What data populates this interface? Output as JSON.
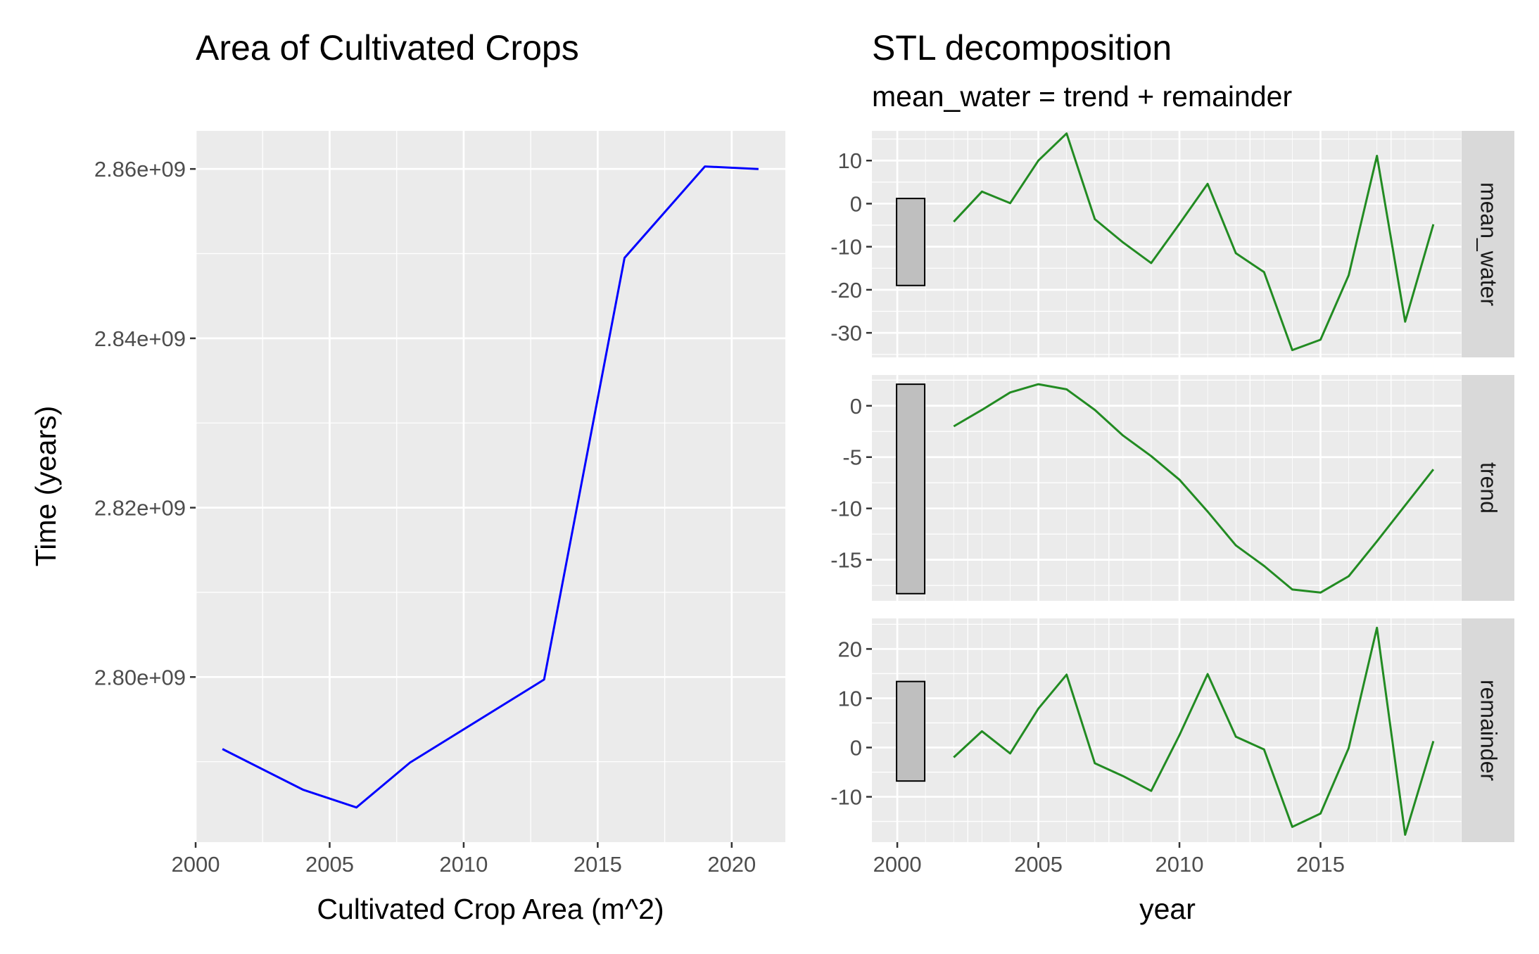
{
  "chart_data": [
    {
      "type": "line",
      "title": "Area of Cultivated Crops",
      "xlabel": "Cultivated Crop Area (m^2)",
      "ylabel": "Time (years)",
      "xlim": [
        2000,
        2022
      ],
      "ylim": [
        2780500000,
        2864500000
      ],
      "x_ticks": [
        2000,
        2005,
        2010,
        2015,
        2020
      ],
      "x_tick_labels": [
        "2000",
        "2005",
        "2010",
        "2015",
        "2020"
      ],
      "y_ticks": [
        2800000000,
        2820000000,
        2840000000,
        2860000000
      ],
      "y_tick_labels": [
        "2.80e+09",
        "2.82e+09",
        "2.84e+09",
        "2.86e+09"
      ],
      "grid": true,
      "line_color": "#0000ff",
      "series": [
        {
          "x": [
            2001,
            2004,
            2006,
            2008,
            2013,
            2016,
            2019,
            2021
          ],
          "values": [
            2791500000,
            2786700000,
            2784600000,
            2789900000,
            2799700000,
            2849500000,
            2860300000,
            2860000000
          ]
        }
      ]
    },
    {
      "type": "line",
      "title": "STL decomposition",
      "subtitle": "mean_water = trend + remainder",
      "xlabel": "year",
      "ylabel": "",
      "xlim": [
        1999.1,
        2020.0
      ],
      "x_ticks": [
        2000,
        2005,
        2010,
        2015
      ],
      "x_tick_labels": [
        "2000",
        "2005",
        "2010",
        "2015"
      ],
      "grid": true,
      "line_color": "#228b22",
      "x": [
        2002,
        2003,
        2004,
        2005,
        2006,
        2007,
        2008,
        2009,
        2010,
        2011,
        2012,
        2013,
        2014,
        2015,
        2016,
        2017,
        2018,
        2019
      ],
      "panels": [
        {
          "strip_label": "mean_water",
          "ylim": [
            -35.7,
            16.9
          ],
          "y_ticks": [
            10,
            0,
            -10,
            -20,
            -30
          ],
          "y_tick_labels": [
            "10",
            "0",
            "-10",
            "-20",
            "-30"
          ],
          "scale_bar": [
            -19.0,
            1.2
          ],
          "values": [
            -4.2,
            2.8,
            0.1,
            10.0,
            16.3,
            -3.6,
            -9.0,
            -13.8,
            -4.7,
            4.6,
            -11.5,
            -15.9,
            -34.0,
            -31.6,
            -16.6,
            11.1,
            -27.4,
            -4.8
          ]
        },
        {
          "strip_label": "trend",
          "ylim": [
            -19.0,
            3.0
          ],
          "y_ticks": [
            0,
            -5,
            -10,
            -15
          ],
          "y_tick_labels": [
            "0",
            "-5",
            "-10",
            "-15"
          ],
          "scale_bar": [
            -18.3,
            2.1
          ],
          "values": [
            -2.0,
            -0.4,
            1.3,
            2.1,
            1.6,
            -0.4,
            -2.9,
            -4.9,
            -7.2,
            -10.3,
            -13.6,
            -15.6,
            -17.9,
            -18.2,
            -16.6,
            -13.2,
            -9.7,
            -6.2
          ]
        },
        {
          "strip_label": "remainder",
          "ylim": [
            -19.2,
            26.2
          ],
          "y_ticks": [
            20,
            10,
            0,
            -10
          ],
          "y_tick_labels": [
            "20",
            "10",
            "0",
            "-10"
          ],
          "scale_bar": [
            -6.8,
            13.4
          ],
          "values": [
            -2.0,
            3.3,
            -1.2,
            7.9,
            14.8,
            -3.2,
            -5.8,
            -8.8,
            2.5,
            14.9,
            2.2,
            -0.4,
            -16.1,
            -13.4,
            -0.1,
            24.3,
            -17.7,
            1.3
          ]
        }
      ]
    }
  ]
}
